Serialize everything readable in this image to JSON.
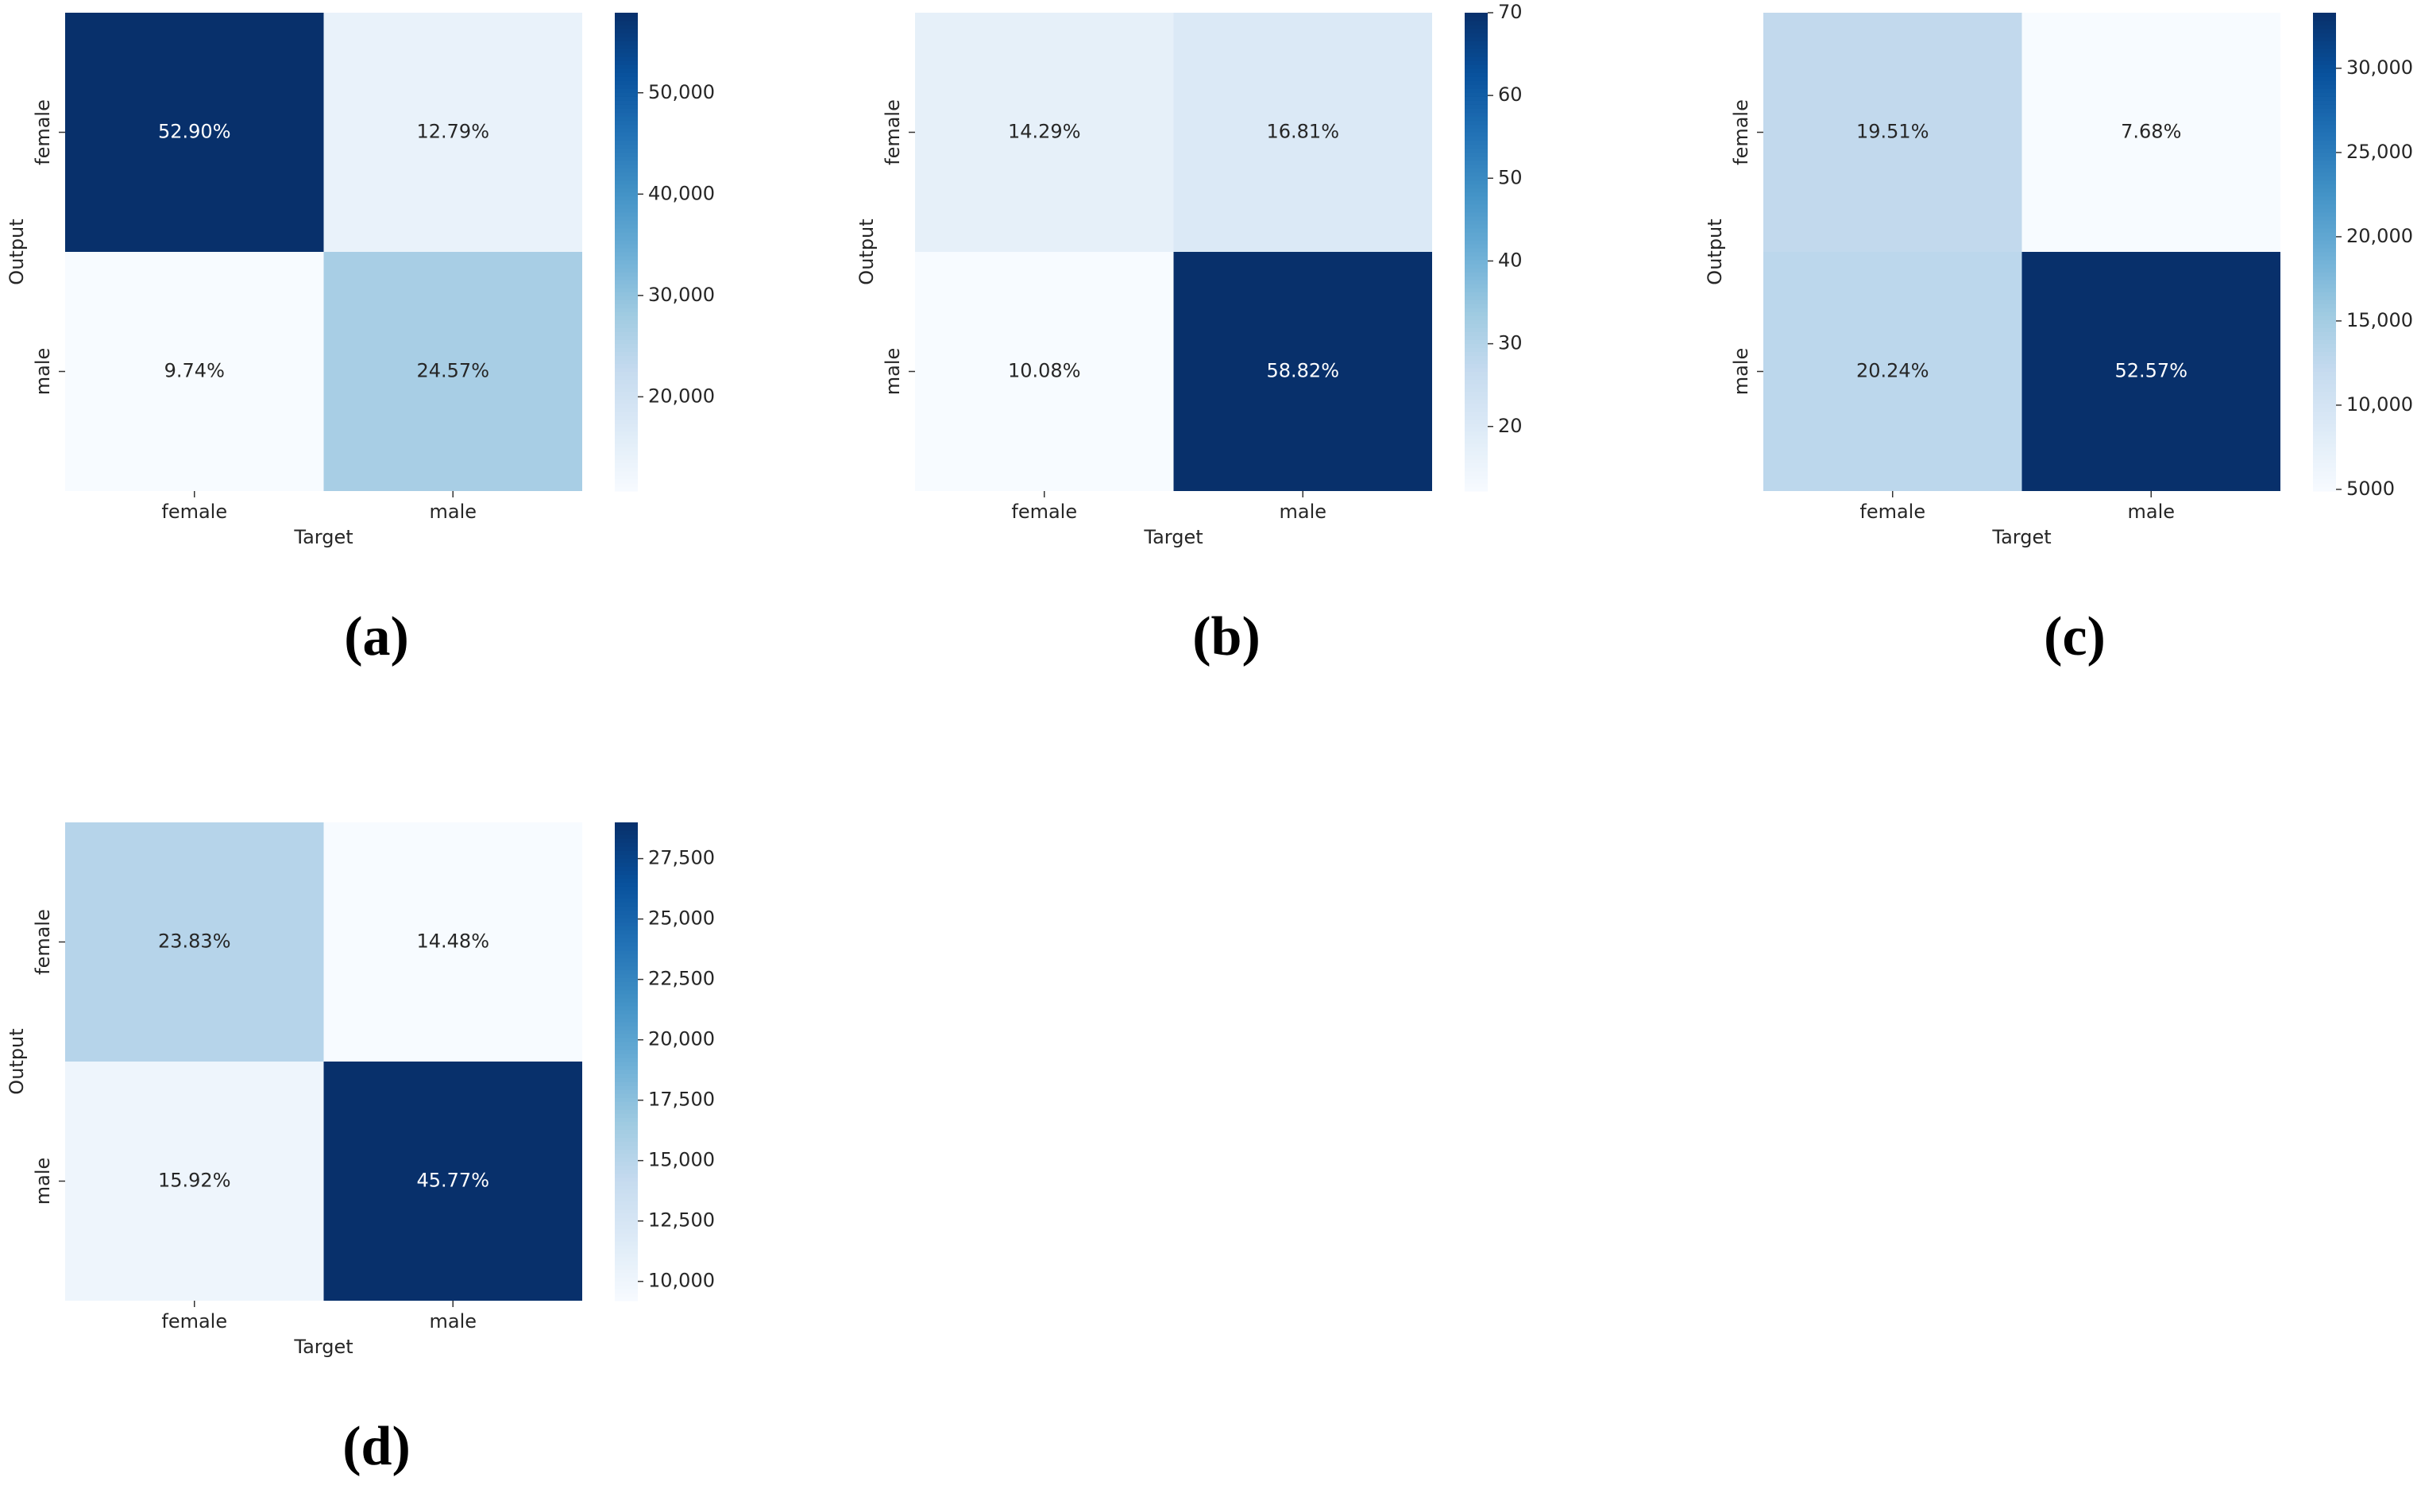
{
  "chart_data": [
    {
      "type": "heatmap",
      "caption": "(a)",
      "xlabel": "Target",
      "ylabel": "Output",
      "x_categories": [
        "female",
        "male"
      ],
      "y_categories": [
        "female",
        "male"
      ],
      "values": [
        [
          52.9,
          12.79
        ],
        [
          9.74,
          24.57
        ]
      ],
      "value_labels": [
        [
          "52.90%",
          "12.79%"
        ],
        [
          "9.74%",
          "24.57%"
        ]
      ],
      "colormap": "Blues",
      "clim": [
        10700,
        57900
      ],
      "cticks": [
        {
          "value": 20000,
          "label": "20,000"
        },
        {
          "value": 30000,
          "label": "30,000"
        },
        {
          "value": 40000,
          "label": "40,000"
        },
        {
          "value": 50000,
          "label": "50,000"
        }
      ]
    },
    {
      "type": "heatmap",
      "caption": "(b)",
      "xlabel": "Target",
      "ylabel": "Output",
      "x_categories": [
        "female",
        "male"
      ],
      "y_categories": [
        "female",
        "male"
      ],
      "values": [
        [
          14.29,
          16.81
        ],
        [
          10.08,
          58.82
        ]
      ],
      "value_labels": [
        [
          "14.29%",
          "16.81%"
        ],
        [
          "10.08%",
          "58.82%"
        ]
      ],
      "colormap": "Blues",
      "clim": [
        12.2,
        70
      ],
      "cticks": [
        20,
        30,
        40,
        50,
        60,
        70
      ]
    },
    {
      "type": "heatmap",
      "caption": "(c)",
      "xlabel": "Target",
      "ylabel": "Output",
      "x_categories": [
        "female",
        "male"
      ],
      "y_categories": [
        "female",
        "male"
      ],
      "values": [
        [
          19.51,
          7.68
        ],
        [
          20.24,
          52.57
        ]
      ],
      "value_labels": [
        [
          "19.51%",
          "7.68%"
        ],
        [
          "20.24%",
          "52.57%"
        ]
      ],
      "colormap": "Blues",
      "clim": [
        4900,
        33300
      ],
      "cticks": [
        5000,
        {
          "value": 10000,
          "label": "10,000"
        },
        {
          "value": 15000,
          "label": "15,000"
        },
        {
          "value": 20000,
          "label": "20,000"
        },
        {
          "value": 25000,
          "label": "25,000"
        },
        {
          "value": 30000,
          "label": "30,000"
        }
      ]
    },
    {
      "type": "heatmap",
      "caption": "(d)",
      "xlabel": "Target",
      "ylabel": "Output",
      "x_categories": [
        "female",
        "male"
      ],
      "y_categories": [
        "female",
        "male"
      ],
      "values": [
        [
          23.83,
          14.48
        ],
        [
          15.92,
          45.77
        ]
      ],
      "value_labels": [
        [
          "23.83%",
          "14.48%"
        ],
        [
          "15.92%",
          "45.77%"
        ]
      ],
      "colormap": "Blues",
      "clim": [
        9200,
        29000
      ],
      "cticks": [
        {
          "value": 10000,
          "label": "10,000"
        },
        {
          "value": 12500,
          "label": "12,500"
        },
        {
          "value": 15000,
          "label": "15,000"
        },
        {
          "value": 17500,
          "label": "17,500"
        },
        {
          "value": 20000,
          "label": "20,000"
        },
        {
          "value": 22500,
          "label": "22,500"
        },
        {
          "value": 25000,
          "label": "25,000"
        },
        {
          "value": 27500,
          "label": "27,500"
        }
      ]
    }
  ]
}
